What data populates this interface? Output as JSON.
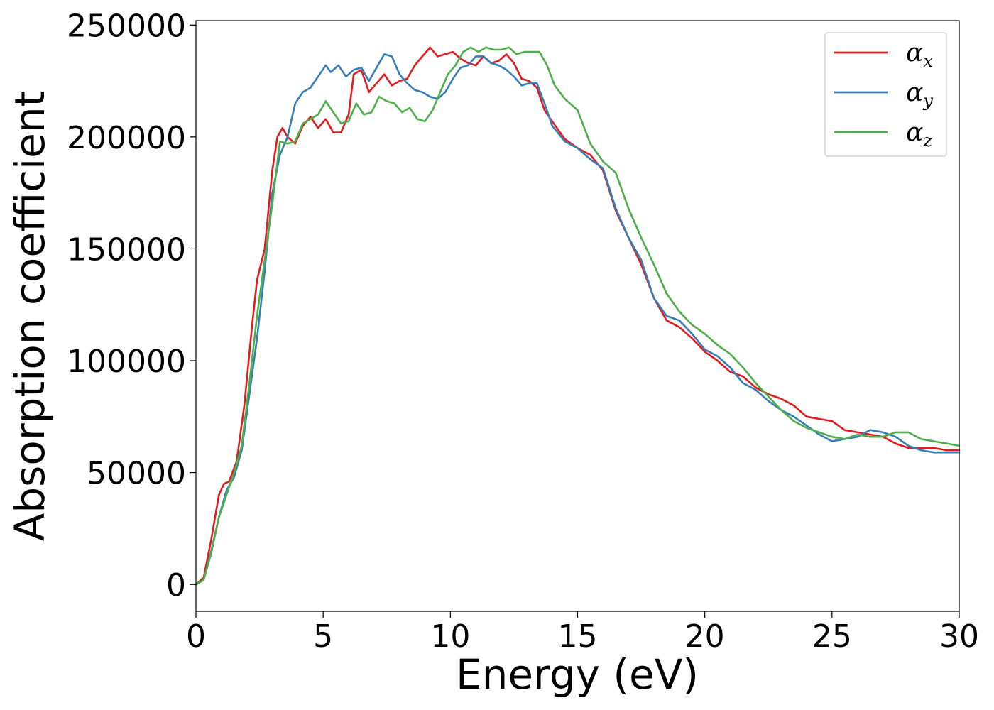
{
  "chart_data": {
    "type": "line",
    "title": "",
    "xlabel": "Energy (eV)",
    "ylabel": "Absorption coefficient",
    "xlim": [
      0,
      30
    ],
    "ylim": [
      -12000,
      252000
    ],
    "xticks": [
      0,
      5,
      10,
      15,
      20,
      25,
      30
    ],
    "yticks": [
      0,
      50000,
      100000,
      150000,
      200000,
      250000
    ],
    "xtick_labels": [
      "0",
      "5",
      "10",
      "15",
      "20",
      "25",
      "30"
    ],
    "ytick_labels": [
      "0",
      "50000",
      "100000",
      "150000",
      "200000",
      "250000"
    ],
    "grid": false,
    "legend_position": "top-right",
    "series": [
      {
        "name": "α_x",
        "legend_symbol": "α",
        "legend_subscript": "x",
        "color": "#e41a1c",
        "x": [
          0,
          0.3,
          0.6,
          0.9,
          1.1,
          1.3,
          1.6,
          1.9,
          2.2,
          2.4,
          2.7,
          3.0,
          3.2,
          3.4,
          3.6,
          3.9,
          4.2,
          4.5,
          4.8,
          5.1,
          5.4,
          5.7,
          6.0,
          6.2,
          6.5,
          6.8,
          7.1,
          7.4,
          7.7,
          8.0,
          8.3,
          8.6,
          8.9,
          9.2,
          9.5,
          9.8,
          10.1,
          10.4,
          10.7,
          11.0,
          11.3,
          11.6,
          11.9,
          12.2,
          12.5,
          12.8,
          13.1,
          13.4,
          13.7,
          14.0,
          14.5,
          15.0,
          15.5,
          16.0,
          16.5,
          17.0,
          17.5,
          18.0,
          18.5,
          19.0,
          19.5,
          20.0,
          20.5,
          21.0,
          21.5,
          22.0,
          22.5,
          23.0,
          23.5,
          24.0,
          24.5,
          25.0,
          25.5,
          26.0,
          26.5,
          27.0,
          27.5,
          28.0,
          28.5,
          29.0,
          29.5,
          30.0
        ],
        "y": [
          0,
          3000,
          20000,
          40000,
          45000,
          46000,
          55000,
          80000,
          115000,
          136000,
          150000,
          185000,
          200000,
          204000,
          200000,
          197000,
          205000,
          209000,
          204000,
          208000,
          202000,
          202000,
          210000,
          228000,
          230000,
          220000,
          224000,
          228000,
          223000,
          225000,
          226000,
          232000,
          236000,
          240000,
          236000,
          237000,
          238000,
          235000,
          233000,
          232000,
          236000,
          233000,
          234000,
          237000,
          233000,
          226000,
          225000,
          222000,
          212000,
          207000,
          199000,
          195000,
          192000,
          185000,
          167000,
          155000,
          143000,
          128000,
          118000,
          115000,
          110000,
          104000,
          100000,
          95000,
          93000,
          88000,
          85000,
          83000,
          80000,
          75000,
          74000,
          73000,
          69000,
          68000,
          67000,
          66000,
          63000,
          61000,
          61000,
          61000,
          60000,
          60000
        ]
      },
      {
        "name": "α_y",
        "legend_symbol": "α",
        "legend_subscript": "y",
        "color": "#377eb8",
        "x": [
          0,
          0.3,
          0.6,
          0.9,
          1.2,
          1.5,
          1.8,
          2.1,
          2.4,
          2.7,
          3.0,
          3.3,
          3.6,
          3.9,
          4.2,
          4.5,
          4.8,
          5.1,
          5.3,
          5.6,
          5.9,
          6.2,
          6.5,
          6.8,
          7.1,
          7.4,
          7.7,
          8.0,
          8.3,
          8.6,
          8.9,
          9.2,
          9.5,
          9.8,
          10.1,
          10.4,
          10.7,
          11.0,
          11.3,
          11.6,
          11.9,
          12.2,
          12.5,
          12.8,
          13.1,
          13.4,
          13.7,
          14.0,
          14.5,
          15.0,
          15.5,
          16.0,
          16.5,
          17.0,
          17.5,
          18.0,
          18.5,
          19.0,
          19.5,
          20.0,
          20.5,
          21.0,
          21.5,
          22.0,
          22.5,
          23.0,
          23.5,
          24.0,
          24.5,
          25.0,
          25.5,
          26.0,
          26.5,
          27.0,
          27.5,
          28.0,
          28.5,
          29.0,
          29.5,
          30.0
        ],
        "y": [
          0,
          2000,
          15000,
          30000,
          42000,
          48000,
          60000,
          85000,
          110000,
          140000,
          175000,
          192000,
          200000,
          215000,
          220000,
          222000,
          227000,
          232000,
          229000,
          232000,
          227000,
          230000,
          231000,
          225000,
          231000,
          237000,
          236000,
          228000,
          224000,
          221000,
          220000,
          218000,
          217000,
          220000,
          226000,
          231000,
          232000,
          236000,
          236000,
          233000,
          232000,
          230000,
          227000,
          223000,
          224000,
          224000,
          215000,
          205000,
          198000,
          195000,
          190000,
          186000,
          168000,
          155000,
          145000,
          128000,
          120000,
          118000,
          112000,
          105000,
          102000,
          97000,
          90000,
          87000,
          82000,
          78000,
          75000,
          71000,
          67000,
          64000,
          65000,
          66000,
          69000,
          68000,
          66000,
          62000,
          60000,
          59000,
          59000,
          59000
        ]
      },
      {
        "name": "α_z",
        "legend_symbol": "α",
        "legend_subscript": "z",
        "color": "#4daf4a",
        "x": [
          0,
          0.3,
          0.6,
          0.9,
          1.2,
          1.5,
          1.8,
          2.1,
          2.4,
          2.7,
          3.0,
          3.3,
          3.6,
          3.9,
          4.2,
          4.5,
          4.8,
          5.1,
          5.4,
          5.7,
          6.0,
          6.3,
          6.6,
          6.9,
          7.2,
          7.5,
          7.8,
          8.1,
          8.4,
          8.7,
          9.0,
          9.3,
          9.6,
          9.9,
          10.2,
          10.5,
          10.8,
          11.1,
          11.4,
          11.7,
          12.0,
          12.3,
          12.6,
          12.9,
          13.2,
          13.5,
          13.8,
          14.1,
          14.5,
          15.0,
          15.5,
          16.0,
          16.5,
          17.0,
          17.5,
          18.0,
          18.5,
          19.0,
          19.5,
          20.0,
          20.5,
          21.0,
          21.5,
          22.0,
          22.5,
          23.0,
          23.5,
          24.0,
          24.5,
          25.0,
          25.5,
          26.0,
          26.5,
          27.0,
          27.5,
          28.0,
          28.5,
          29.0,
          29.5,
          30.0
        ],
        "y": [
          0,
          2000,
          14000,
          30000,
          40000,
          50000,
          62000,
          90000,
          120000,
          145000,
          170000,
          198000,
          197000,
          198000,
          206000,
          208000,
          210000,
          216000,
          211000,
          206000,
          207000,
          215000,
          210000,
          211000,
          218000,
          216000,
          215000,
          211000,
          213000,
          208000,
          207000,
          212000,
          220000,
          228000,
          232000,
          238000,
          240000,
          238000,
          240000,
          239000,
          239000,
          240000,
          237000,
          238000,
          238000,
          238000,
          232000,
          223000,
          217000,
          212000,
          197000,
          189000,
          184000,
          168000,
          155000,
          143000,
          130000,
          122000,
          116000,
          112000,
          107000,
          103000,
          97000,
          90000,
          84000,
          78000,
          73000,
          70000,
          68000,
          66000,
          65000,
          67000,
          66000,
          66000,
          68000,
          68000,
          65000,
          64000,
          63000,
          62000
        ]
      }
    ]
  }
}
